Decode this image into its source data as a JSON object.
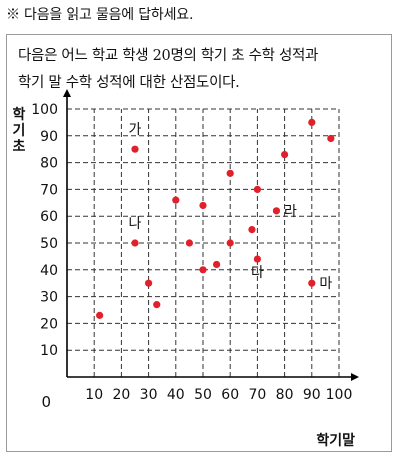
{
  "instruction": "※ 다음을 읽고 물음에 답하세요.",
  "passage": {
    "line1": "다음은 어느 학교 학생 20명의 학기 초 수학 성적과",
    "line2": "학기 말 수학 성적에 대한 산점도이다."
  },
  "chart_data": {
    "type": "scatter",
    "ylabel": "학기초",
    "xlabel": "학기말",
    "xlim": [
      0,
      100
    ],
    "ylim": [
      0,
      100
    ],
    "x_ticks": [
      0,
      10,
      20,
      30,
      40,
      50,
      60,
      70,
      80,
      90,
      100
    ],
    "y_ticks": [
      10,
      20,
      30,
      40,
      50,
      60,
      70,
      80,
      90,
      100
    ],
    "origin_label": "0",
    "grid": true,
    "marker_color": "#e0202a",
    "points": [
      {
        "x": 12,
        "y": 23
      },
      {
        "x": 25,
        "y": 85
      },
      {
        "x": 25,
        "y": 50
      },
      {
        "x": 30,
        "y": 35
      },
      {
        "x": 33,
        "y": 27
      },
      {
        "x": 40,
        "y": 66
      },
      {
        "x": 45,
        "y": 50
      },
      {
        "x": 50,
        "y": 64
      },
      {
        "x": 50,
        "y": 40
      },
      {
        "x": 55,
        "y": 42
      },
      {
        "x": 60,
        "y": 76
      },
      {
        "x": 60,
        "y": 50
      },
      {
        "x": 68,
        "y": 55
      },
      {
        "x": 70,
        "y": 70
      },
      {
        "x": 70,
        "y": 44
      },
      {
        "x": 77,
        "y": 62
      },
      {
        "x": 80,
        "y": 83
      },
      {
        "x": 90,
        "y": 95
      },
      {
        "x": 90,
        "y": 35
      },
      {
        "x": 97,
        "y": 89
      }
    ],
    "annotations": [
      {
        "text": "가",
        "x": 25,
        "y": 85
      },
      {
        "text": "나",
        "x": 25,
        "y": 50
      },
      {
        "text": "다",
        "x": 70,
        "y": 44
      },
      {
        "text": "라",
        "x": 77,
        "y": 62
      },
      {
        "text": "마",
        "x": 90,
        "y": 35
      }
    ]
  }
}
